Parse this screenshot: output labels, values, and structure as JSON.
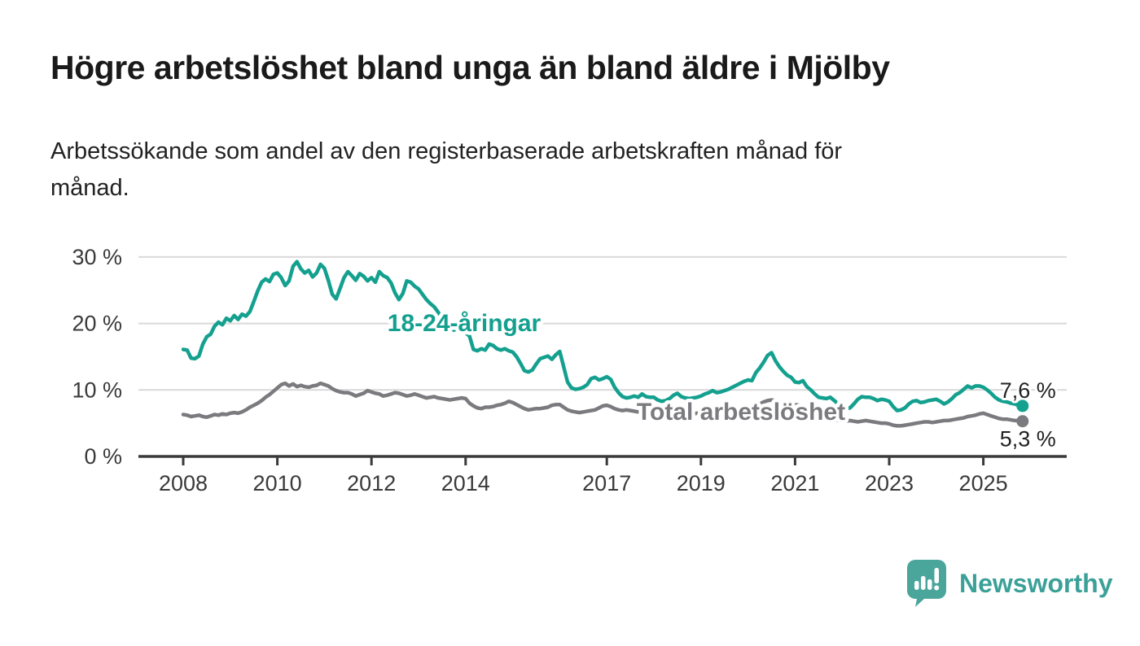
{
  "header": {
    "title": "Högre arbetslöshet bland unga än bland äldre i Mjölby",
    "subtitle_line1": "Arbetssökande som andel av den registerbaserade arbetskraften månad för",
    "subtitle_line2": "månad."
  },
  "footer": {
    "brand": "Newsworthy",
    "logo_color": "#4aa59b",
    "wordmark_color": "#3ba198"
  },
  "chart_data": {
    "type": "line",
    "unit": "%",
    "x_start": 2008.0,
    "x_step": 0.0833333,
    "x_tick_years": [
      2008,
      2010,
      2012,
      2014,
      2017,
      2019,
      2021,
      2023,
      2025
    ],
    "x_tick_labels": [
      "2008",
      "2010",
      "2012",
      "2014",
      "2017",
      "2019",
      "2021",
      "2023",
      "2025"
    ],
    "y_ticks": [
      0,
      10,
      20,
      30
    ],
    "y_tick_labels": [
      "0 %",
      "10 %",
      "20 %",
      "30 %"
    ],
    "ylim": [
      0,
      31
    ],
    "grid": "horizontal",
    "colors": {
      "grid": "#d9d9d9",
      "axis": "#3a3a3a",
      "tick_text": "#3a3a3a"
    },
    "series": [
      {
        "name": "18-24-åringar",
        "color": "#14a08f",
        "end_label": "7,6 %",
        "last_value": 7.6,
        "values": [
          16.1,
          16.0,
          14.8,
          14.7,
          15.1,
          16.9,
          18.0,
          18.4,
          19.6,
          20.2,
          19.8,
          20.8,
          20.4,
          21.2,
          20.6,
          21.4,
          21.1,
          21.8,
          23.3,
          24.9,
          26.2,
          26.7,
          26.3,
          27.4,
          27.6,
          26.9,
          25.7,
          26.4,
          28.6,
          29.3,
          28.2,
          27.6,
          28.0,
          27.0,
          27.6,
          28.9,
          28.3,
          26.5,
          24.4,
          23.7,
          25.3,
          26.9,
          27.8,
          27.2,
          26.5,
          27.5,
          27.1,
          26.4,
          26.9,
          26.2,
          27.8,
          27.2,
          26.9,
          26.1,
          24.6,
          23.6,
          24.5,
          26.4,
          26.2,
          25.6,
          25.2,
          24.4,
          23.6,
          23.0,
          22.5,
          21.7,
          20.8,
          20.0,
          19.4,
          19.0,
          19.2,
          18.9,
          18.6,
          18.1,
          16.1,
          15.9,
          16.2,
          16.0,
          16.9,
          16.7,
          16.2,
          16.0,
          16.2,
          15.9,
          15.7,
          15.0,
          14.0,
          12.9,
          12.7,
          13.0,
          13.9,
          14.7,
          14.9,
          15.1,
          14.6,
          15.3,
          15.8,
          13.5,
          11.2,
          10.3,
          10.1,
          10.2,
          10.4,
          10.8,
          11.7,
          11.9,
          11.5,
          11.7,
          12.0,
          11.6,
          10.4,
          9.6,
          9.0,
          8.8,
          8.9,
          9.1,
          8.9,
          9.4,
          9.0,
          8.9,
          8.9,
          8.5,
          8.3,
          8.4,
          8.7,
          9.2,
          9.5,
          9.0,
          8.8,
          8.7,
          8.8,
          8.9,
          9.1,
          9.4,
          9.6,
          9.9,
          9.6,
          9.7,
          9.9,
          10.1,
          10.4,
          10.7,
          11.0,
          11.3,
          11.5,
          11.4,
          12.6,
          13.3,
          14.2,
          15.2,
          15.6,
          14.4,
          13.5,
          12.8,
          12.2,
          11.9,
          11.2,
          11.1,
          11.4,
          10.5,
          10.0,
          9.4,
          8.9,
          8.8,
          8.7,
          8.9,
          8.4,
          7.9,
          7.5,
          7.2,
          7.3,
          7.9,
          8.6,
          9.0,
          8.9,
          8.9,
          8.7,
          8.4,
          8.6,
          8.5,
          8.3,
          7.5,
          6.9,
          7.0,
          7.3,
          7.9,
          8.3,
          8.4,
          8.1,
          8.2,
          8.4,
          8.5,
          8.6,
          8.3,
          7.9,
          8.2,
          8.7,
          9.3,
          9.6,
          10.1,
          10.6,
          10.3,
          10.6,
          10.6,
          10.4,
          10.0,
          9.5,
          8.9,
          8.5,
          8.3,
          8.2,
          8.0,
          7.9,
          7.7,
          7.6
        ]
      },
      {
        "name": "Total arbetslöshet",
        "color": "#7b7b7f",
        "end_label": "5,3 %",
        "last_value": 5.3,
        "values": [
          6.3,
          6.2,
          6.0,
          6.1,
          6.2,
          6.0,
          5.9,
          6.1,
          6.3,
          6.2,
          6.4,
          6.3,
          6.5,
          6.6,
          6.5,
          6.7,
          7.0,
          7.4,
          7.7,
          8.0,
          8.4,
          8.9,
          9.3,
          9.8,
          10.3,
          10.8,
          11.0,
          10.6,
          10.9,
          10.5,
          10.7,
          10.5,
          10.4,
          10.6,
          10.7,
          11.0,
          10.8,
          10.6,
          10.2,
          9.9,
          9.7,
          9.6,
          9.6,
          9.4,
          9.1,
          9.3,
          9.5,
          9.9,
          9.7,
          9.5,
          9.4,
          9.1,
          9.2,
          9.4,
          9.6,
          9.5,
          9.3,
          9.1,
          9.2,
          9.4,
          9.2,
          9.0,
          8.8,
          8.9,
          9.0,
          8.8,
          8.7,
          8.6,
          8.5,
          8.6,
          8.7,
          8.8,
          8.7,
          8.0,
          7.6,
          7.3,
          7.2,
          7.4,
          7.4,
          7.5,
          7.7,
          7.8,
          8.0,
          8.3,
          8.1,
          7.8,
          7.5,
          7.2,
          7.0,
          7.1,
          7.2,
          7.2,
          7.3,
          7.4,
          7.7,
          7.8,
          7.8,
          7.4,
          7.0,
          6.8,
          6.7,
          6.6,
          6.7,
          6.8,
          6.9,
          7.0,
          7.3,
          7.6,
          7.7,
          7.5,
          7.2,
          7.0,
          6.9,
          7.0,
          6.9,
          6.8,
          6.7,
          6.8,
          6.9,
          6.9,
          6.8,
          6.6,
          6.4,
          6.3,
          6.3,
          6.4,
          6.4,
          6.3,
          6.2,
          6.3,
          6.4,
          6.5,
          6.4,
          6.3,
          6.2,
          6.2,
          6.3,
          6.4,
          6.5,
          6.5,
          6.6,
          6.7,
          6.8,
          6.9,
          7.0,
          7.1,
          7.5,
          7.9,
          8.2,
          8.4,
          8.5,
          8.4,
          8.3,
          8.1,
          8.0,
          7.9,
          7.8,
          7.7,
          7.5,
          7.3,
          7.1,
          6.8,
          6.5,
          6.2,
          5.9,
          5.7,
          5.5,
          5.4,
          5.4,
          5.3,
          5.4,
          5.3,
          5.2,
          5.3,
          5.4,
          5.3,
          5.2,
          5.1,
          5.0,
          5.0,
          4.9,
          4.7,
          4.6,
          4.6,
          4.7,
          4.8,
          4.9,
          5.0,
          5.1,
          5.2,
          5.2,
          5.1,
          5.2,
          5.3,
          5.4,
          5.4,
          5.5,
          5.6,
          5.7,
          5.8,
          6.0,
          6.1,
          6.2,
          6.4,
          6.5,
          6.3,
          6.1,
          5.9,
          5.7,
          5.6,
          5.6,
          5.5,
          5.4,
          5.4,
          5.3
        ]
      }
    ]
  }
}
